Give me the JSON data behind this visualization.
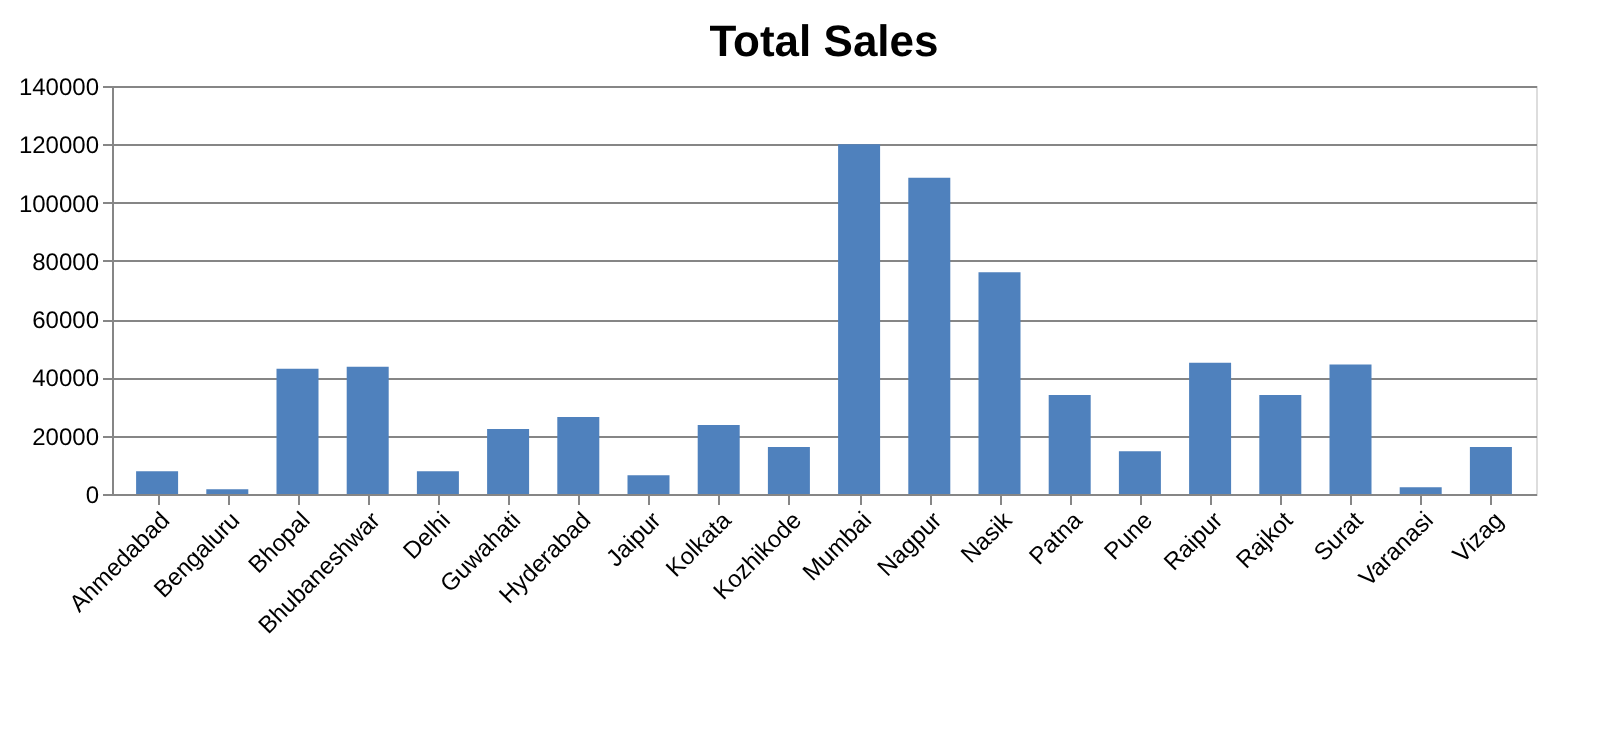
{
  "chart_data": {
    "type": "bar",
    "title": "Total Sales",
    "categories": [
      "Ahmedabad",
      "Bengaluru",
      "Bhopal",
      "Bhubaneshwar",
      "Delhi",
      "Guwahati",
      "Hyderabad",
      "Jaipur",
      "Kolkata",
      "Kozhikode",
      "Mumbai",
      "Nagpur",
      "Nasik",
      "Patna",
      "Pune",
      "Raipur",
      "Rajkot",
      "Surat",
      "Varanasi",
      "Vizag"
    ],
    "values": [
      7800,
      1600,
      43000,
      43700,
      7800,
      22300,
      26400,
      6400,
      23700,
      16100,
      120000,
      108500,
      76100,
      34000,
      14700,
      45000,
      34000,
      44400,
      2300,
      16100
    ],
    "color": "#4f81bd",
    "ylim": [
      0,
      140000
    ],
    "yticks": [
      0,
      20000,
      40000,
      60000,
      80000,
      100000,
      120000,
      140000
    ],
    "grid": "y"
  }
}
